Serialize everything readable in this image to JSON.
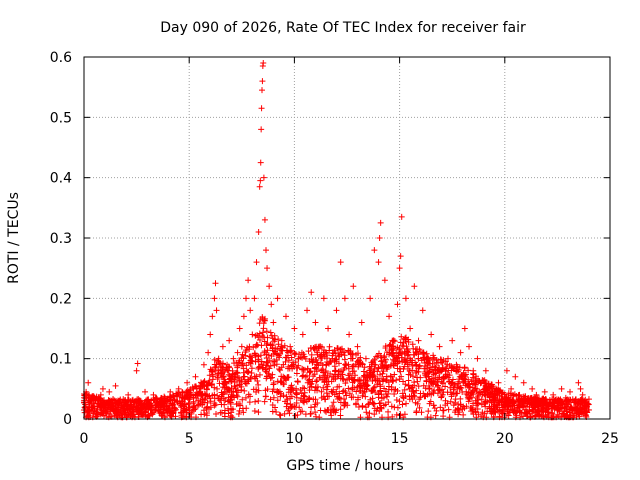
{
  "chart_data": {
    "type": "scatter",
    "title": "Day 090 of 2026, Rate Of TEC Index for receiver fair",
    "xlabel": "GPS time / hours",
    "ylabel": "ROTI / TECUs",
    "xlim": [
      0,
      25
    ],
    "ylim": [
      0,
      0.6
    ],
    "xticks": [
      0,
      5,
      10,
      15,
      20,
      25
    ],
    "xtick_labels": [
      "0",
      "5",
      "10",
      "15",
      "20",
      "25"
    ],
    "yticks": [
      0,
      0.1,
      0.2,
      0.3,
      0.4,
      0.5,
      0.6
    ],
    "ytick_labels": [
      "0",
      "0.1",
      "0.2",
      "0.3",
      "0.4",
      "0.5",
      "0.6"
    ],
    "grid": true,
    "marker": "+",
    "series_color": "#ff0000",
    "series": [
      {
        "points": [
          [
            0.0,
            0.015
          ],
          [
            0.1,
            0.045
          ],
          [
            0.2,
            0.06
          ],
          [
            0.3,
            0.03
          ],
          [
            0.4,
            0.02
          ],
          [
            0.5,
            0.035
          ],
          [
            0.6,
            0.012
          ],
          [
            0.8,
            0.04
          ],
          [
            0.9,
            0.05
          ],
          [
            1.0,
            0.025
          ],
          [
            1.2,
            0.045
          ],
          [
            1.4,
            0.018
          ],
          [
            1.5,
            0.055
          ],
          [
            1.7,
            0.03
          ],
          [
            1.9,
            0.02
          ],
          [
            2.1,
            0.04
          ],
          [
            2.3,
            0.015
          ],
          [
            2.5,
            0.08
          ],
          [
            2.55,
            0.092
          ],
          [
            2.7,
            0.03
          ],
          [
            2.9,
            0.045
          ],
          [
            3.1,
            0.02
          ],
          [
            3.3,
            0.04
          ],
          [
            3.5,
            0.025
          ],
          [
            3.7,
            0.035
          ],
          [
            3.9,
            0.015
          ],
          [
            4.1,
            0.045
          ],
          [
            4.3,
            0.03
          ],
          [
            4.5,
            0.05
          ],
          [
            4.7,
            0.035
          ],
          [
            4.9,
            0.06
          ],
          [
            5.1,
            0.04
          ],
          [
            5.3,
            0.07
          ],
          [
            5.5,
            0.05
          ],
          [
            5.7,
            0.09
          ],
          [
            5.9,
            0.11
          ],
          [
            6.0,
            0.14
          ],
          [
            6.1,
            0.17
          ],
          [
            6.2,
            0.2
          ],
          [
            6.25,
            0.225
          ],
          [
            6.3,
            0.18
          ],
          [
            6.4,
            0.1
          ],
          [
            6.5,
            0.08
          ],
          [
            6.6,
            0.12
          ],
          [
            6.7,
            0.06
          ],
          [
            6.8,
            0.09
          ],
          [
            6.9,
            0.13
          ],
          [
            7.0,
            0.07
          ],
          [
            7.1,
            0.1
          ],
          [
            7.2,
            0.05
          ],
          [
            7.3,
            0.11
          ],
          [
            7.4,
            0.15
          ],
          [
            7.5,
            0.12
          ],
          [
            7.6,
            0.17
          ],
          [
            7.7,
            0.2
          ],
          [
            7.8,
            0.23
          ],
          [
            7.9,
            0.18
          ],
          [
            8.0,
            0.14
          ],
          [
            8.1,
            0.2
          ],
          [
            8.2,
            0.26
          ],
          [
            8.3,
            0.31
          ],
          [
            8.35,
            0.385
          ],
          [
            8.38,
            0.395
          ],
          [
            8.4,
            0.425
          ],
          [
            8.42,
            0.48
          ],
          [
            8.44,
            0.515
          ],
          [
            8.46,
            0.545
          ],
          [
            8.48,
            0.56
          ],
          [
            8.5,
            0.585
          ],
          [
            8.52,
            0.59
          ],
          [
            8.55,
            0.4
          ],
          [
            8.6,
            0.33
          ],
          [
            8.65,
            0.28
          ],
          [
            8.7,
            0.25
          ],
          [
            8.8,
            0.22
          ],
          [
            8.9,
            0.19
          ],
          [
            9.0,
            0.16
          ],
          [
            9.2,
            0.2
          ],
          [
            9.4,
            0.13
          ],
          [
            9.6,
            0.17
          ],
          [
            9.8,
            0.12
          ],
          [
            10.0,
            0.15
          ],
          [
            10.2,
            0.1
          ],
          [
            10.4,
            0.14
          ],
          [
            10.6,
            0.18
          ],
          [
            10.8,
            0.21
          ],
          [
            11.0,
            0.16
          ],
          [
            11.2,
            0.12
          ],
          [
            11.4,
            0.2
          ],
          [
            11.6,
            0.15
          ],
          [
            11.8,
            0.1
          ],
          [
            12.0,
            0.18
          ],
          [
            12.2,
            0.26
          ],
          [
            12.4,
            0.2
          ],
          [
            12.6,
            0.14
          ],
          [
            12.8,
            0.22
          ],
          [
            13.0,
            0.12
          ],
          [
            13.2,
            0.16
          ],
          [
            13.4,
            0.1
          ],
          [
            13.6,
            0.2
          ],
          [
            13.8,
            0.28
          ],
          [
            14.0,
            0.26
          ],
          [
            14.05,
            0.3
          ],
          [
            14.1,
            0.325
          ],
          [
            14.3,
            0.23
          ],
          [
            14.5,
            0.17
          ],
          [
            14.7,
            0.12
          ],
          [
            14.9,
            0.19
          ],
          [
            15.0,
            0.25
          ],
          [
            15.05,
            0.27
          ],
          [
            15.1,
            0.335
          ],
          [
            15.3,
            0.2
          ],
          [
            15.5,
            0.15
          ],
          [
            15.7,
            0.22
          ],
          [
            15.9,
            0.13
          ],
          [
            16.1,
            0.18
          ],
          [
            16.3,
            0.1
          ],
          [
            16.5,
            0.14
          ],
          [
            16.7,
            0.08
          ],
          [
            16.9,
            0.12
          ],
          [
            17.1,
            0.07
          ],
          [
            17.3,
            0.1
          ],
          [
            17.5,
            0.13
          ],
          [
            17.7,
            0.09
          ],
          [
            17.9,
            0.11
          ],
          [
            18.1,
            0.15
          ],
          [
            18.3,
            0.12
          ],
          [
            18.5,
            0.08
          ],
          [
            18.7,
            0.1
          ],
          [
            18.9,
            0.06
          ],
          [
            19.1,
            0.08
          ],
          [
            19.3,
            0.05
          ],
          [
            19.5,
            0.04
          ],
          [
            19.7,
            0.06
          ],
          [
            19.9,
            0.03
          ],
          [
            20.1,
            0.08
          ],
          [
            20.3,
            0.05
          ],
          [
            20.5,
            0.07
          ],
          [
            20.7,
            0.04
          ],
          [
            20.9,
            0.06
          ],
          [
            21.1,
            0.03
          ],
          [
            21.3,
            0.05
          ],
          [
            21.5,
            0.04
          ],
          [
            21.7,
            0.025
          ],
          [
            21.9,
            0.045
          ],
          [
            22.1,
            0.02
          ],
          [
            22.3,
            0.04
          ],
          [
            22.5,
            0.03
          ],
          [
            22.7,
            0.05
          ],
          [
            22.9,
            0.035
          ],
          [
            23.1,
            0.045
          ],
          [
            23.3,
            0.03
          ],
          [
            23.5,
            0.06
          ],
          [
            23.6,
            0.05
          ],
          [
            23.7,
            0.04
          ],
          [
            23.8,
            0.03
          ],
          [
            23.9,
            0.02
          ],
          [
            24.0,
            0.015
          ]
        ]
      }
    ],
    "density": [
      [
        0.0,
        0.04
      ],
      [
        0.5,
        0.035
      ],
      [
        1.0,
        0.03
      ],
      [
        2.0,
        0.03
      ],
      [
        3.0,
        0.03
      ],
      [
        4.0,
        0.035
      ],
      [
        5.0,
        0.045
      ],
      [
        5.8,
        0.06
      ],
      [
        6.2,
        0.09
      ],
      [
        7.0,
        0.08
      ],
      [
        7.6,
        0.1
      ],
      [
        8.0,
        0.12
      ],
      [
        8.5,
        0.16
      ],
      [
        9.0,
        0.13
      ],
      [
        10.0,
        0.1
      ],
      [
        11.0,
        0.11
      ],
      [
        12.0,
        0.11
      ],
      [
        13.0,
        0.1
      ],
      [
        13.5,
        0.08
      ],
      [
        14.0,
        0.1
      ],
      [
        15.0,
        0.13
      ],
      [
        16.0,
        0.11
      ],
      [
        17.0,
        0.09
      ],
      [
        18.0,
        0.08
      ],
      [
        19.0,
        0.06
      ],
      [
        20.0,
        0.04
      ],
      [
        21.0,
        0.035
      ],
      [
        22.0,
        0.03
      ],
      [
        23.0,
        0.03
      ],
      [
        24.0,
        0.03
      ]
    ]
  }
}
